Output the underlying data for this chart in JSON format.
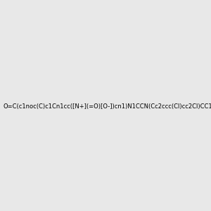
{
  "smiles": "O=C(c1noc(C)c1Cn1cc([N+](=O)[O-])cn1)N1CCN(Cc2ccc(Cl)cc2Cl)CC1",
  "image_size": 300,
  "background_color": "#e8e8e8",
  "title": ""
}
